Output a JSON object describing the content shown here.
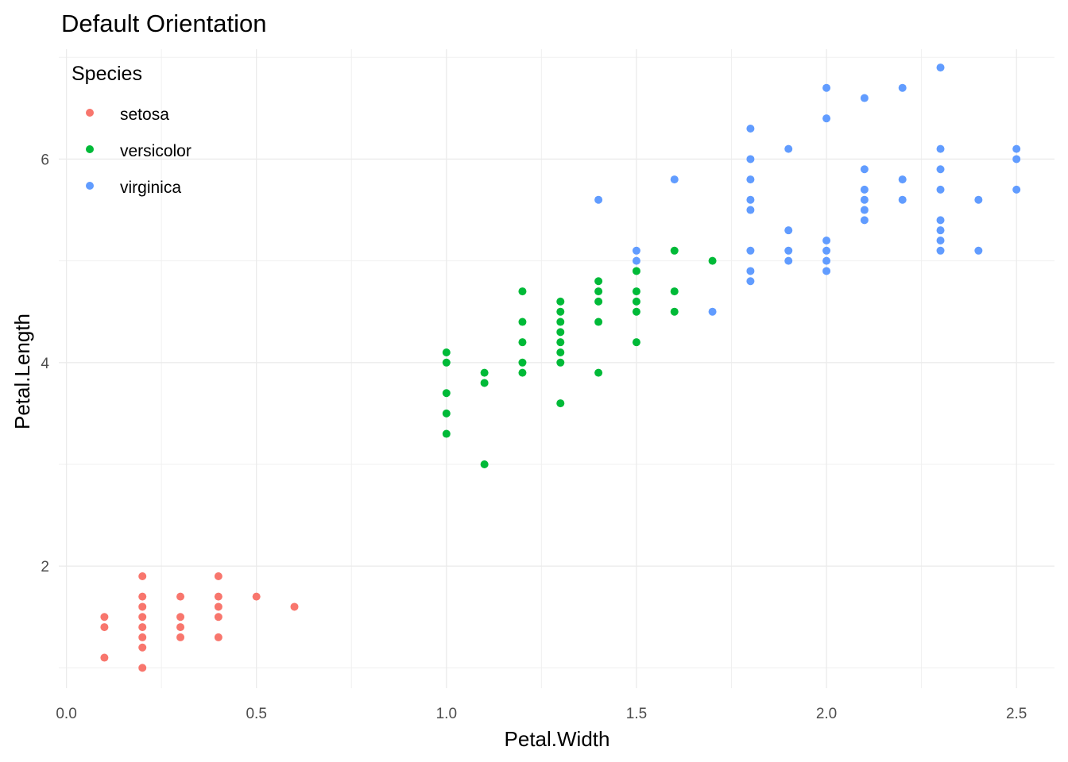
{
  "chart_data": {
    "type": "scatter",
    "title": "Default Orientation",
    "xlabel": "Petal.Width",
    "ylabel": "Petal.Length",
    "xlim": [
      -0.02,
      2.6
    ],
    "ylim": [
      0.8,
      7.08
    ],
    "x_ticks": [
      0.0,
      0.5,
      1.0,
      1.5,
      2.0,
      2.5
    ],
    "x_tick_labels": [
      "0.0",
      "0.5",
      "1.0",
      "1.5",
      "2.0",
      "2.5"
    ],
    "y_ticks": [
      2,
      4,
      6
    ],
    "y_tick_labels": [
      "2",
      "4",
      "6"
    ],
    "grid": true,
    "legend": {
      "title": "Species",
      "position": "top-left"
    },
    "series": [
      {
        "name": "setosa",
        "color": "#F8766D",
        "points": [
          [
            0.1,
            1.5
          ],
          [
            0.1,
            1.4
          ],
          [
            0.1,
            1.1
          ],
          [
            0.2,
            1.9
          ],
          [
            0.2,
            1.7
          ],
          [
            0.2,
            1.6
          ],
          [
            0.2,
            1.5
          ],
          [
            0.2,
            1.4
          ],
          [
            0.2,
            1.3
          ],
          [
            0.2,
            1.2
          ],
          [
            0.2,
            1.0
          ],
          [
            0.3,
            1.7
          ],
          [
            0.3,
            1.5
          ],
          [
            0.3,
            1.4
          ],
          [
            0.3,
            1.3
          ],
          [
            0.4,
            1.9
          ],
          [
            0.4,
            1.7
          ],
          [
            0.4,
            1.6
          ],
          [
            0.4,
            1.5
          ],
          [
            0.4,
            1.3
          ],
          [
            0.5,
            1.7
          ],
          [
            0.6,
            1.6
          ]
        ]
      },
      {
        "name": "versicolor",
        "color": "#00BA38",
        "points": [
          [
            1.0,
            4.1
          ],
          [
            1.0,
            4.0
          ],
          [
            1.0,
            3.7
          ],
          [
            1.0,
            3.5
          ],
          [
            1.0,
            3.3
          ],
          [
            1.1,
            3.9
          ],
          [
            1.1,
            3.8
          ],
          [
            1.1,
            3.0
          ],
          [
            1.2,
            4.7
          ],
          [
            1.2,
            4.4
          ],
          [
            1.2,
            4.2
          ],
          [
            1.2,
            4.0
          ],
          [
            1.2,
            3.9
          ],
          [
            1.3,
            4.6
          ],
          [
            1.3,
            4.5
          ],
          [
            1.3,
            4.4
          ],
          [
            1.3,
            4.3
          ],
          [
            1.3,
            4.2
          ],
          [
            1.3,
            4.1
          ],
          [
            1.3,
            4.0
          ],
          [
            1.3,
            3.6
          ],
          [
            1.4,
            4.8
          ],
          [
            1.4,
            4.7
          ],
          [
            1.4,
            4.6
          ],
          [
            1.4,
            4.4
          ],
          [
            1.4,
            3.9
          ],
          [
            1.5,
            4.9
          ],
          [
            1.5,
            4.7
          ],
          [
            1.5,
            4.6
          ],
          [
            1.5,
            4.5
          ],
          [
            1.5,
            4.2
          ],
          [
            1.6,
            5.1
          ],
          [
            1.6,
            4.7
          ],
          [
            1.6,
            4.5
          ],
          [
            1.7,
            5.0
          ]
        ]
      },
      {
        "name": "virginica",
        "color": "#619CFF",
        "points": [
          [
            1.4,
            5.6
          ],
          [
            1.5,
            5.1
          ],
          [
            1.5,
            5.0
          ],
          [
            1.6,
            5.8
          ],
          [
            1.7,
            4.5
          ],
          [
            1.8,
            6.3
          ],
          [
            1.8,
            6.0
          ],
          [
            1.8,
            5.8
          ],
          [
            1.8,
            5.6
          ],
          [
            1.8,
            5.5
          ],
          [
            1.8,
            5.1
          ],
          [
            1.8,
            4.9
          ],
          [
            1.8,
            4.8
          ],
          [
            1.9,
            6.1
          ],
          [
            1.9,
            5.3
          ],
          [
            1.9,
            5.1
          ],
          [
            1.9,
            5.0
          ],
          [
            2.0,
            6.7
          ],
          [
            2.0,
            6.4
          ],
          [
            2.0,
            5.2
          ],
          [
            2.0,
            5.1
          ],
          [
            2.0,
            5.0
          ],
          [
            2.0,
            4.9
          ],
          [
            2.1,
            6.6
          ],
          [
            2.1,
            5.9
          ],
          [
            2.1,
            5.7
          ],
          [
            2.1,
            5.6
          ],
          [
            2.1,
            5.5
          ],
          [
            2.1,
            5.4
          ],
          [
            2.2,
            6.7
          ],
          [
            2.2,
            5.8
          ],
          [
            2.2,
            5.6
          ],
          [
            2.3,
            6.9
          ],
          [
            2.3,
            6.1
          ],
          [
            2.3,
            5.9
          ],
          [
            2.3,
            5.7
          ],
          [
            2.3,
            5.4
          ],
          [
            2.3,
            5.3
          ],
          [
            2.3,
            5.2
          ],
          [
            2.3,
            5.1
          ],
          [
            2.4,
            5.6
          ],
          [
            2.4,
            5.1
          ],
          [
            2.5,
            6.1
          ],
          [
            2.5,
            6.0
          ],
          [
            2.5,
            5.7
          ]
        ]
      }
    ]
  }
}
